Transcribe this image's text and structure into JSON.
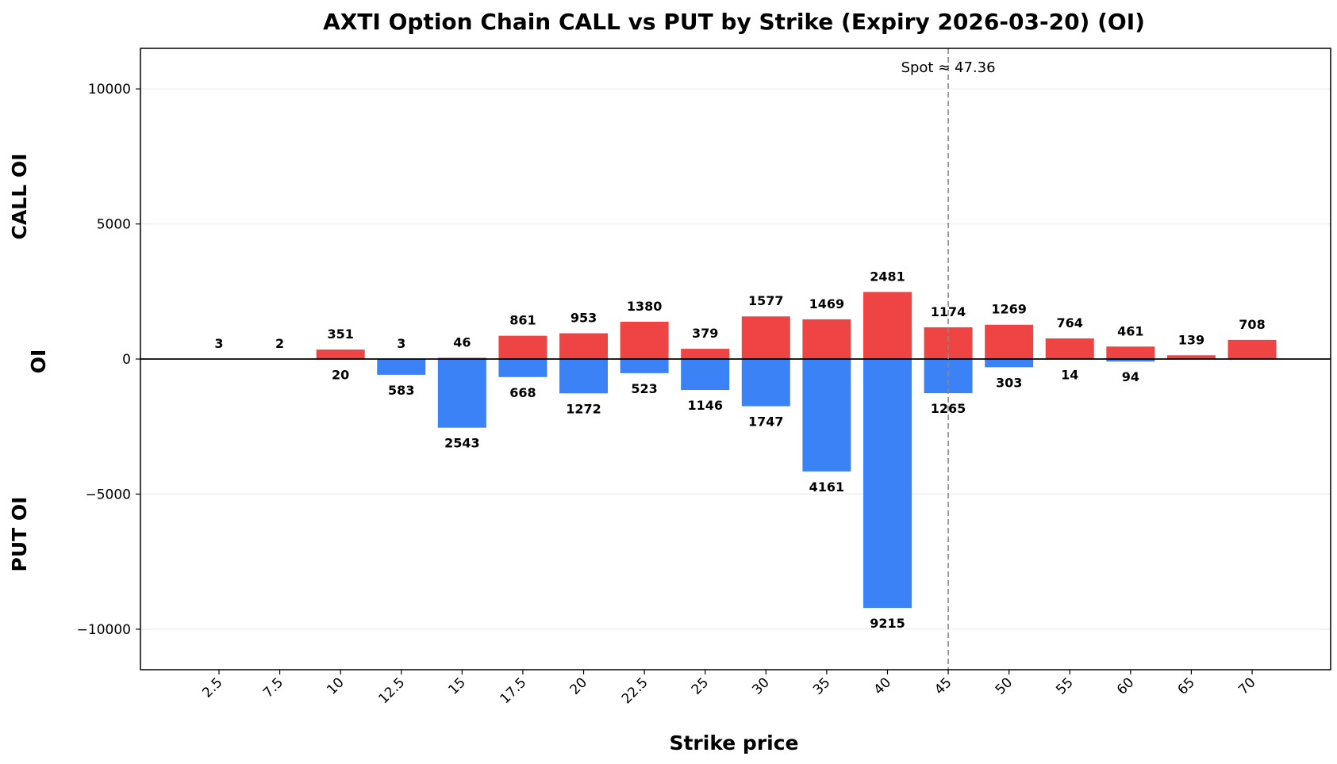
{
  "chart_data": {
    "type": "bar",
    "title": "AXTI Option Chain CALL vs PUT by Strike (Expiry 2026-03-20) (OI)",
    "xlabel": "Strike price",
    "ylabel": "OI",
    "ylabel_top": "CALL OI",
    "ylabel_bottom": "PUT OI",
    "categories": [
      "2.5",
      "7.5",
      "10",
      "12.5",
      "15",
      "17.5",
      "20",
      "22.5",
      "25",
      "30",
      "35",
      "40",
      "45",
      "50",
      "55",
      "60",
      "65",
      "70"
    ],
    "series": [
      {
        "name": "CALL",
        "color": "#ef4444",
        "values": [
          3,
          2,
          351,
          3,
          46,
          861,
          953,
          1380,
          379,
          1577,
          1469,
          2481,
          1174,
          1269,
          764,
          461,
          139,
          708
        ]
      },
      {
        "name": "PUT",
        "color": "#3b82f6",
        "values": [
          0,
          0,
          20,
          583,
          2543,
          668,
          1272,
          523,
          1146,
          1747,
          4161,
          9215,
          1265,
          303,
          14,
          94,
          0,
          0
        ]
      }
    ],
    "put_labels": [
      "",
      "",
      "20",
      "583",
      "2543",
      "668",
      "1272",
      "523",
      "1146",
      "1747",
      "4161",
      "9215",
      "1265",
      "303",
      "14",
      "94",
      "",
      ""
    ],
    "ylim": [
      -11500,
      11500
    ],
    "yticks": [
      10000,
      5000,
      0,
      -5000,
      -10000
    ],
    "ytick_labels": [
      "10000",
      "5000",
      "0",
      "−5000",
      "−10000"
    ],
    "grid": true,
    "spot": {
      "label": "Spot ≈ 47.36",
      "category_value": 45
    }
  }
}
